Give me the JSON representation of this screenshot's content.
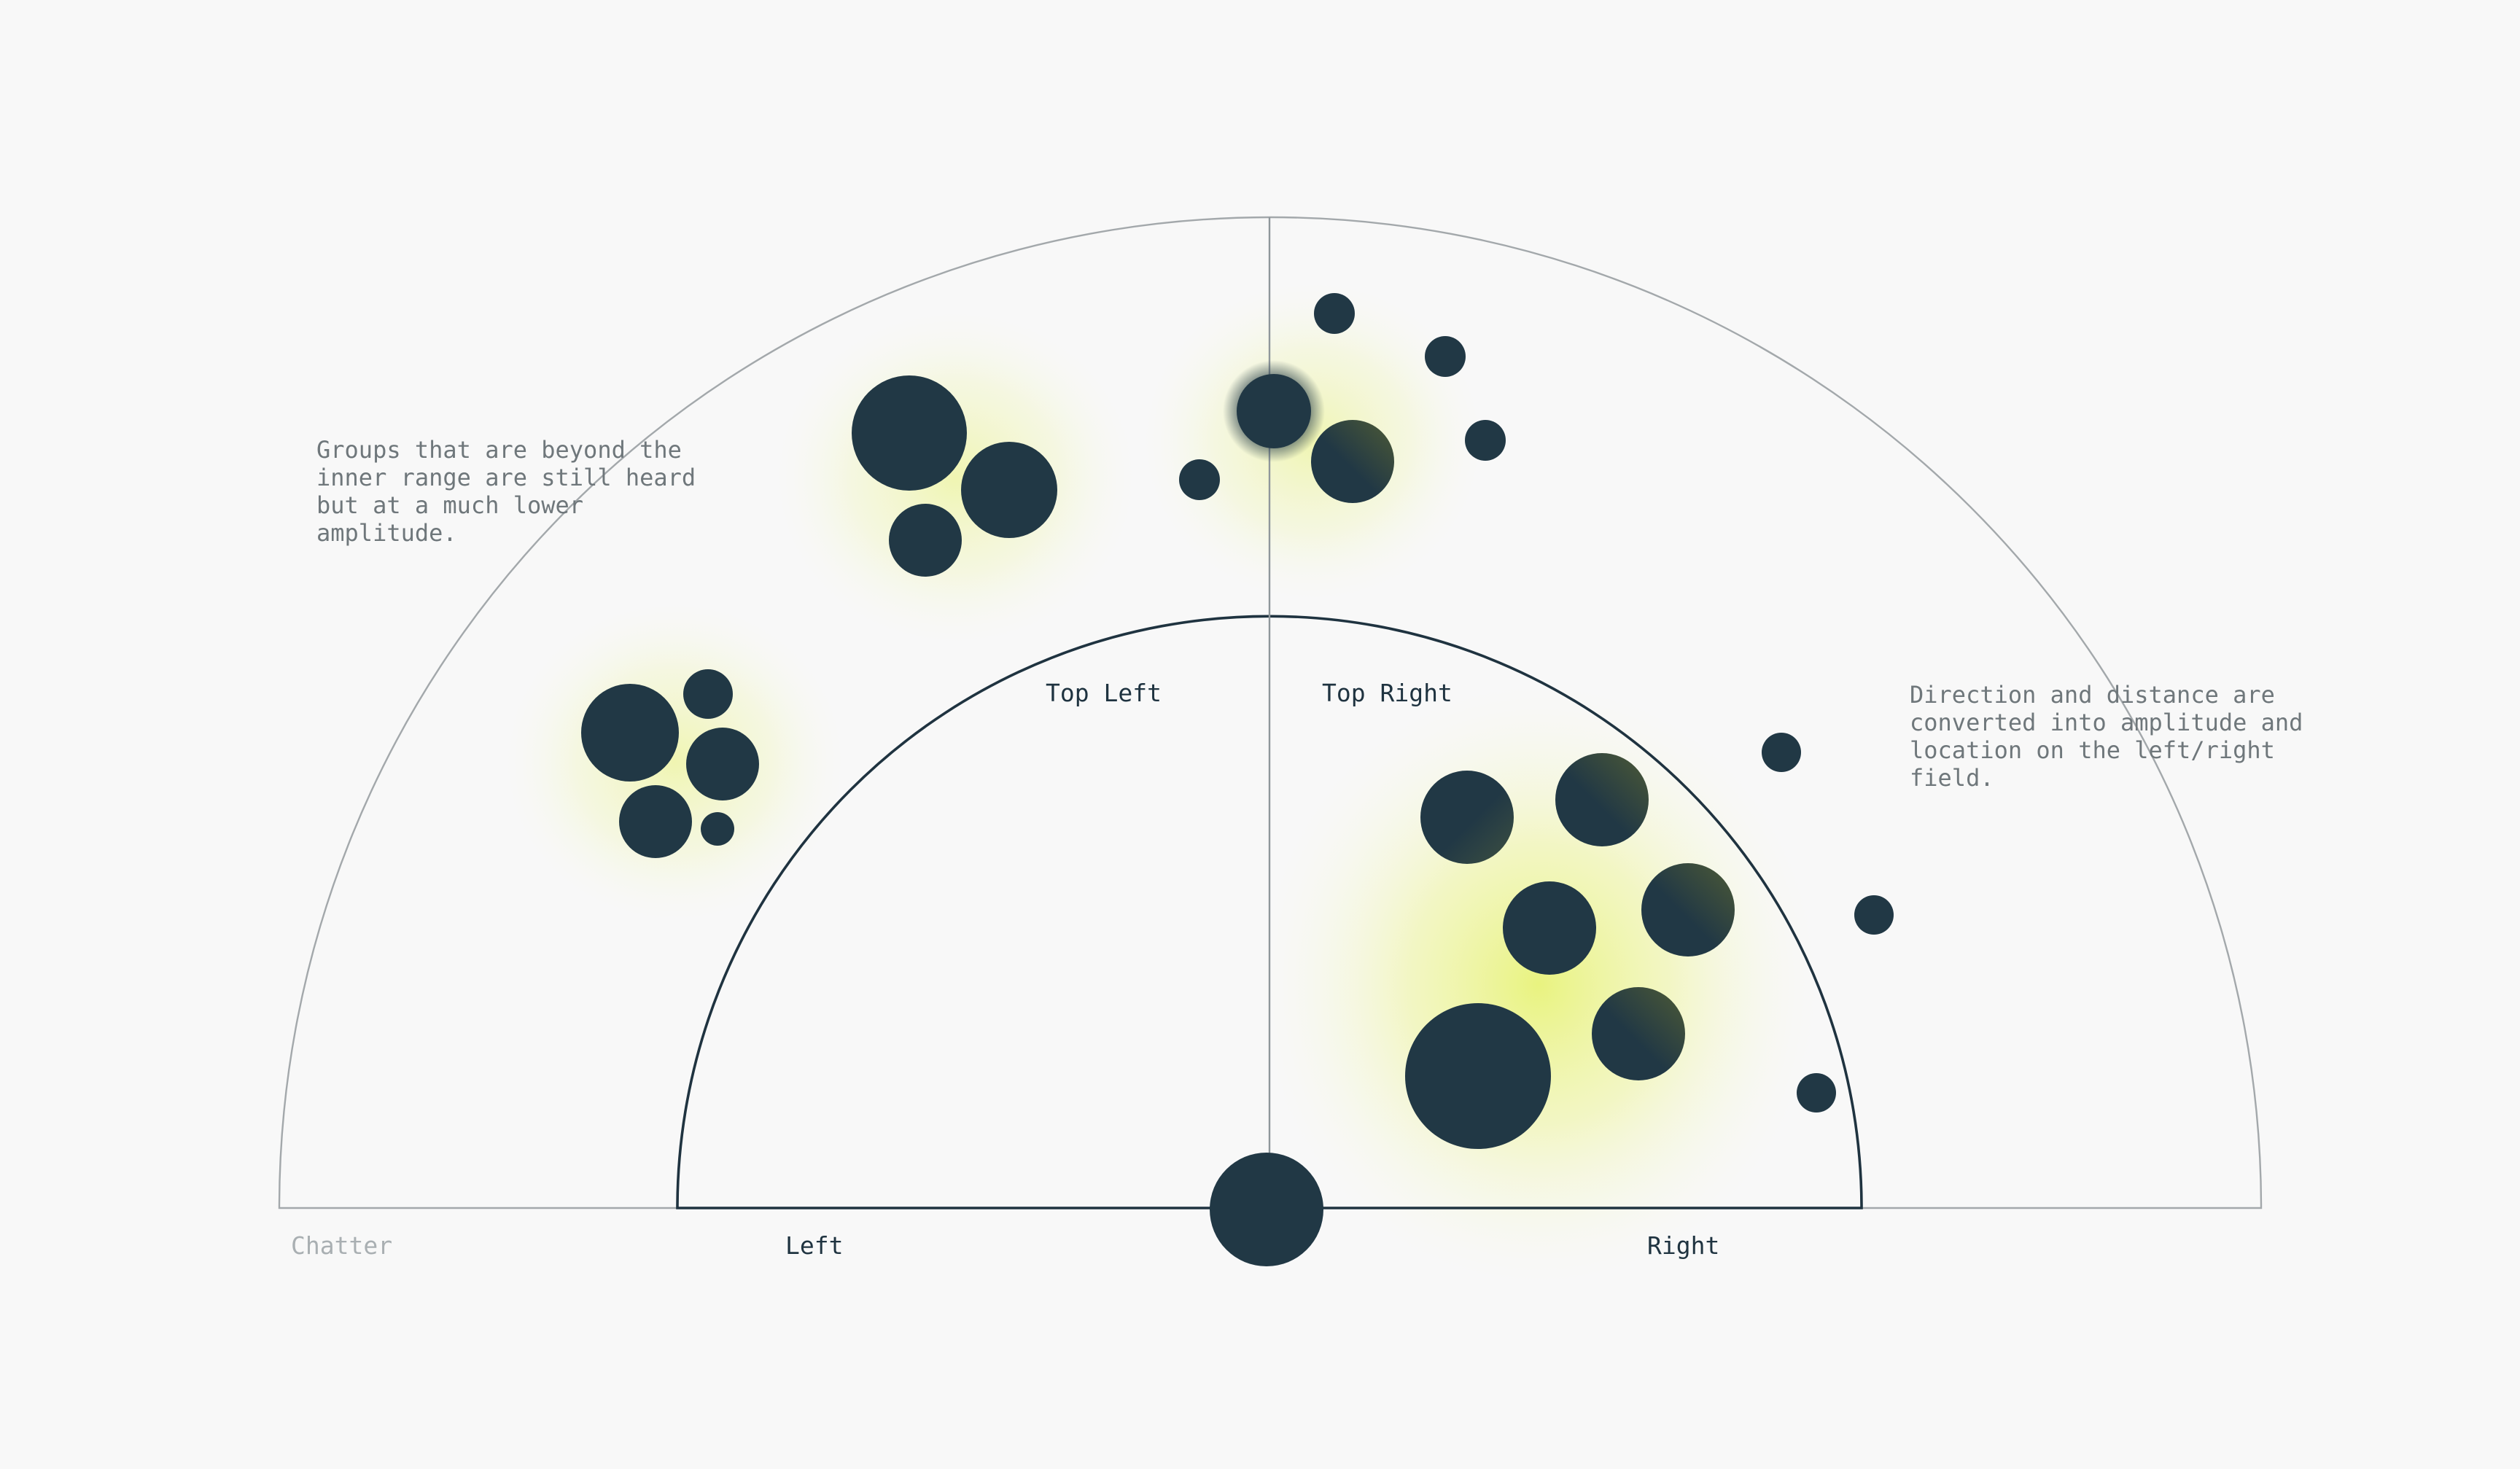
{
  "notes": {
    "outer_range": "Groups that are beyond the\ninner range are still heard\nbut at a much lower\namplitude.",
    "direction": "Direction and distance are\nconverted into amplitude and\nlocation on the left/right\nfield."
  },
  "field_labels": {
    "top_left": "Top Left",
    "top_right": "Top Right",
    "left": "Left",
    "right": "Right",
    "outer_field": "Chatter"
  },
  "colors": {
    "background": "#f8f8f8",
    "node": "#213845",
    "inner_arc": "#1f3340",
    "outer_arc": "#a3a8ab",
    "glow": "#e6f26a",
    "note_text": "#6f777b",
    "label_text": "#1f3340",
    "muted_label": "#a9afb2"
  },
  "listener": {
    "icon": "listener-dot-icon",
    "highlighted_node_icon": "focused-node-ring-icon"
  }
}
